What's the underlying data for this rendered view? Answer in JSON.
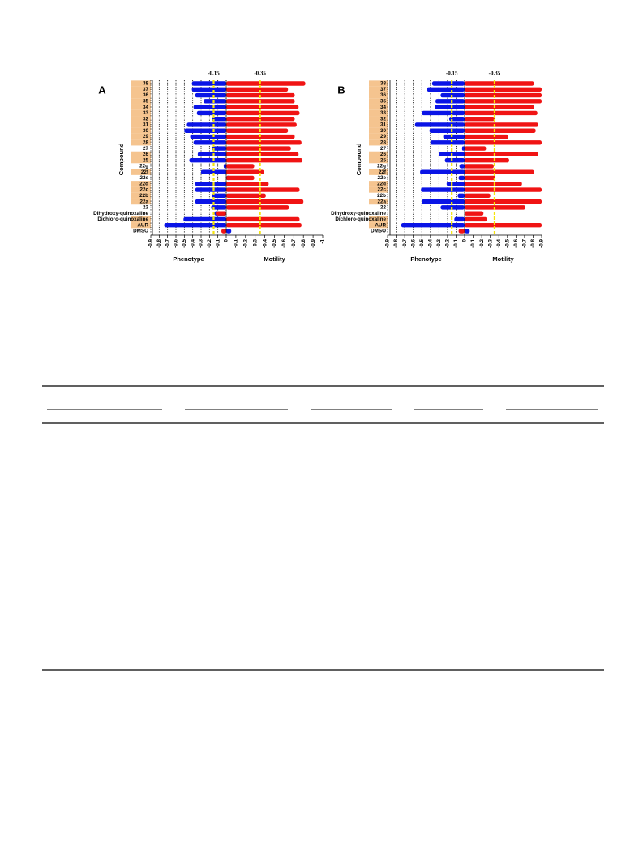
{
  "chart_data": [
    {
      "type": "butterfly-bar",
      "panel_label": "A",
      "y_label": "Compound",
      "categories": [
        "38",
        "37",
        "36",
        "35",
        "34",
        "33",
        "32",
        "31",
        "30",
        "29",
        "28",
        "27",
        "26",
        "25",
        "22g",
        "22f",
        "22e",
        "22d",
        "22c",
        "22b",
        "22a",
        "22",
        "Dihydroxy-quinoxaline",
        "Dichloro-quinoxaline",
        "AUR",
        "DMSO"
      ],
      "highlighted": [
        true,
        true,
        true,
        true,
        true,
        true,
        true,
        true,
        true,
        true,
        true,
        false,
        true,
        true,
        false,
        true,
        false,
        true,
        true,
        true,
        true,
        false,
        false,
        true,
        true,
        false
      ],
      "highlight_color": "#f5c48f",
      "series": [
        {
          "name": "Phenotype",
          "color": "#0a14e6",
          "threshold": -0.15,
          "grid": true,
          "xlim": [
            0,
            -0.9
          ],
          "xticks": [
            0,
            -0.1,
            -0.2,
            -0.3,
            -0.4,
            -0.5,
            -0.6,
            -0.7,
            -0.8,
            -0.9
          ],
          "values": [
            -0.41,
            -0.41,
            -0.37,
            -0.27,
            -0.39,
            -0.35,
            -0.17,
            -0.47,
            -0.5,
            -0.43,
            -0.39,
            -0.17,
            -0.34,
            -0.44,
            -0.03,
            -0.3,
            0.05,
            -0.37,
            -0.37,
            -0.17,
            -0.37,
            -0.18,
            -0.14,
            -0.51,
            -0.74,
            0.06
          ]
        },
        {
          "name": "Motility",
          "color": "#f01414",
          "threshold": -0.35,
          "grid": false,
          "xlim": [
            0,
            -1
          ],
          "xticks": [
            -0.1,
            -0.2,
            -0.3,
            -0.4,
            -0.5,
            -0.6,
            -0.7,
            -0.8,
            -0.9,
            -1
          ],
          "values": [
            -0.82,
            -0.64,
            -0.71,
            -0.71,
            -0.75,
            -0.76,
            -0.71,
            -0.73,
            -0.64,
            -0.71,
            -0.78,
            -0.67,
            -0.75,
            -0.79,
            -0.29,
            -0.39,
            -0.29,
            -0.44,
            -0.76,
            -0.41,
            -0.8,
            -0.65,
            0.1,
            -0.76,
            -0.78,
            0.05
          ]
        }
      ]
    },
    {
      "type": "butterfly-bar",
      "panel_label": "B",
      "y_label": "Compound",
      "categories": [
        "38",
        "37",
        "36",
        "35",
        "34",
        "33",
        "32",
        "31",
        "30",
        "29",
        "28",
        "27",
        "26",
        "25",
        "22g",
        "22f",
        "22e",
        "22d",
        "22c",
        "22b",
        "22a",
        "22",
        "Dihydroxy-quinoxaline",
        "Dichloro-quinoxaline",
        "AUR",
        "DMSO"
      ],
      "highlighted": [
        true,
        true,
        true,
        true,
        true,
        true,
        true,
        true,
        true,
        true,
        true,
        false,
        true,
        true,
        false,
        true,
        false,
        true,
        true,
        false,
        true,
        false,
        false,
        true,
        true,
        false
      ],
      "highlight_color": "#f5c48f",
      "series": [
        {
          "name": "Phenotype",
          "color": "#0a14e6",
          "threshold": -0.15,
          "grid": true,
          "xlim": [
            0,
            -0.9
          ],
          "xticks": [
            0,
            -0.1,
            -0.2,
            -0.3,
            -0.4,
            -0.5,
            -0.6,
            -0.7,
            -0.8,
            -0.9
          ],
          "values": [
            -0.38,
            -0.44,
            -0.28,
            -0.34,
            -0.35,
            -0.5,
            -0.18,
            -0.58,
            -0.41,
            -0.25,
            -0.4,
            -0.03,
            -0.3,
            -0.23,
            -0.06,
            -0.52,
            -0.07,
            -0.21,
            -0.51,
            -0.08,
            -0.5,
            -0.28,
            0,
            -0.12,
            -0.74,
            0.06
          ]
        },
        {
          "name": "Motility",
          "color": "#f01414",
          "threshold": -0.35,
          "grid": false,
          "xlim": [
            0,
            -0.9
          ],
          "xticks": [
            -0.1,
            -0.2,
            -0.3,
            -0.4,
            -0.5,
            -0.6,
            -0.7,
            -0.8,
            -0.9
          ],
          "values": [
            -0.81,
            -0.9,
            -0.9,
            -0.9,
            -0.81,
            -0.85,
            -0.35,
            -0.86,
            -0.83,
            -0.51,
            -0.9,
            -0.25,
            -0.86,
            -0.52,
            -0.34,
            -0.81,
            -0.36,
            -0.67,
            -0.9,
            -0.3,
            -0.9,
            -0.71,
            -0.22,
            -0.26,
            -0.9,
            0.07
          ]
        }
      ]
    }
  ]
}
